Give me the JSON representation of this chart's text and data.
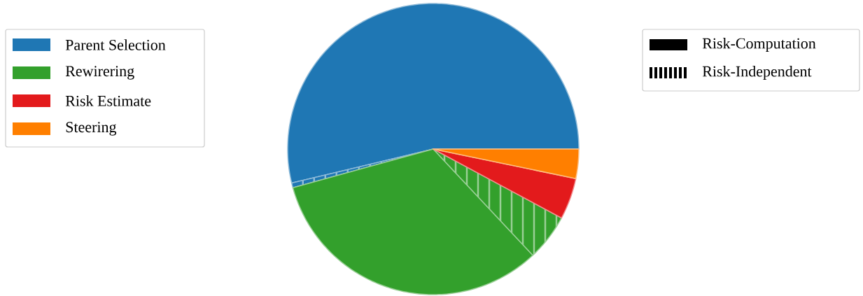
{
  "chart_data": {
    "type": "pie",
    "categories": [
      "Parent Selection",
      null,
      "Rewirering",
      null,
      "Risk Estimate",
      "Steering"
    ],
    "values": [
      53.75,
      0.53,
      32.7,
      5.17,
      4.6,
      3.25
    ],
    "colors": [
      "#1f77b4",
      "#1f77b4",
      "#33a02c",
      "#33a02c",
      "#e31a1c",
      "#ff7f00"
    ],
    "annotations": [
      "Risk-Computation",
      "Risk-Independent"
    ],
    "legend": "left"
  }
}
